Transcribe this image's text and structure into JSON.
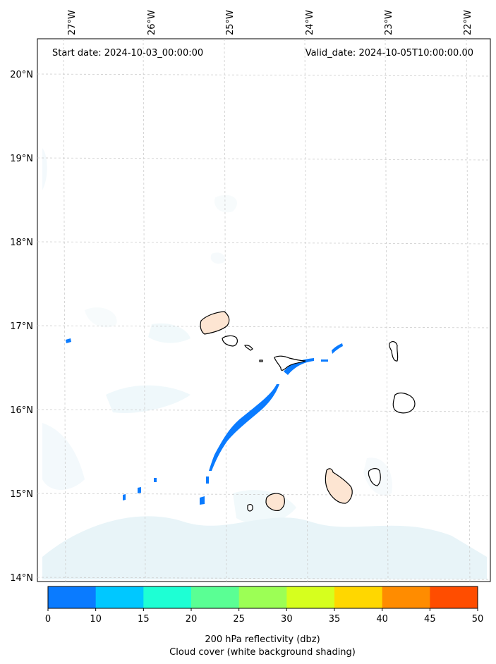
{
  "map": {
    "start_label": "Start date: 2024-10-03_00:00:00",
    "valid_label": "Valid_date: 2024-10-05T10:00:00.00",
    "lon_labels": [
      "27°W",
      "26°W",
      "25°W",
      "24°W",
      "23°W",
      "22°W"
    ],
    "lat_labels": [
      "20°N",
      "19°N",
      "18°N",
      "17°N",
      "16°N",
      "15°N",
      "14°N"
    ],
    "extent": {
      "lon_min": -27.3,
      "lon_max": -21.8,
      "lat_min": 13.95,
      "lat_max": 20.4
    },
    "gridlines": true,
    "features": [
      "Santo Antão",
      "São Vicente",
      "Santa Luzia",
      "São Nicolau",
      "Sal",
      "Boa Vista",
      "Maio",
      "Santiago",
      "Fogo",
      "Brava"
    ]
  },
  "colorbar": {
    "ticks": [
      "0",
      "10",
      "15",
      "20",
      "25",
      "30",
      "35",
      "40",
      "45",
      "50"
    ],
    "colors": [
      "#0a7bff",
      "#00c8ff",
      "#1effd4",
      "#5aff94",
      "#9cff55",
      "#d6ff1e",
      "#ffd700",
      "#ff8c00",
      "#ff4d00"
    ],
    "title_line1": "200 hPa reflectivity (dbz)",
    "title_line2": "Cloud cover (white background shading)"
  },
  "style": {
    "reflectivity_low": "#0a7bff",
    "cloud_shading": "#d6ecf3",
    "land_warm": "#fde5d2",
    "grid": "#cccccc"
  }
}
